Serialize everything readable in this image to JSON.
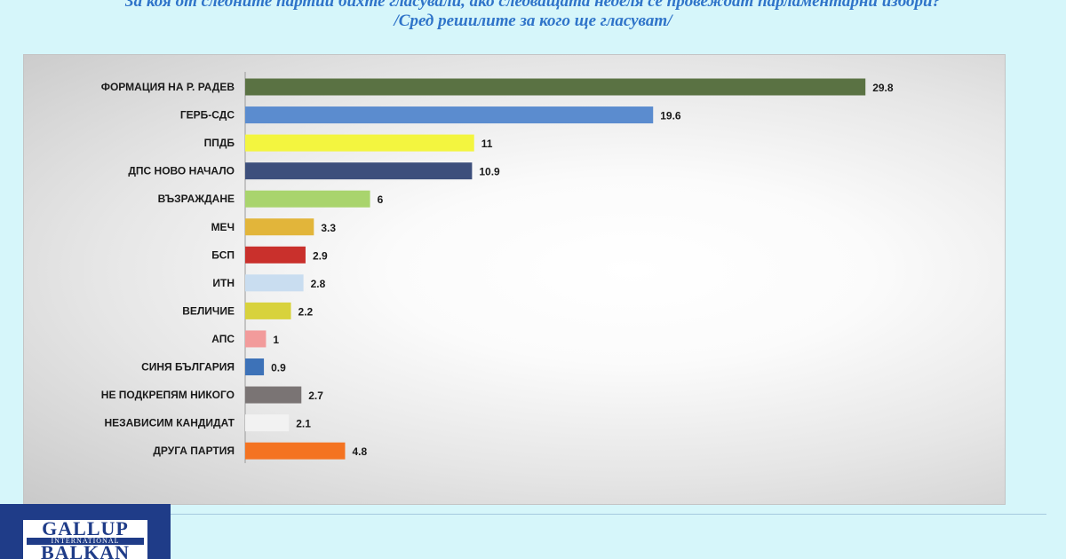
{
  "header": {
    "title_line1": "За коя от следните партии бихте гласували, ако следващата неделя се провеждат парламентарни избори?",
    "title_line2": "/Сред решилите за кого ще гласуват/"
  },
  "logo": {
    "line1": "GALLUP",
    "line2": "INTERNATIONAL",
    "line3": "BALKAN"
  },
  "chart_data": {
    "type": "bar",
    "orientation": "horizontal",
    "title": "За коя от следните партии бихте гласували, ако следващата неделя се провеждат парламентарни избори?",
    "subtitle": "/Сред решилите за кого ще гласуват/",
    "xlabel": "",
    "ylabel": "",
    "xlim": [
      0,
      32
    ],
    "grid": false,
    "categories": [
      "ФОРМАЦИЯ НА Р. РАДЕВ",
      "ГЕРБ-СДС",
      "ППДБ",
      "ДПС НОВО НАЧАЛО",
      "ВЪЗРАЖДАНЕ",
      "МЕЧ",
      "БСП",
      "ИТН",
      "ВЕЛИЧИЕ",
      "АПС",
      "СИНЯ БЪЛГАРИЯ",
      "НЕ ПОДКРЕПЯМ НИКОГО",
      "НЕЗАВИСИМ КАНДИДАТ",
      "ДРУГА ПАРТИЯ"
    ],
    "values": [
      29.8,
      19.6,
      11,
      10.9,
      6,
      3.3,
      2.9,
      2.8,
      2.2,
      1,
      0.9,
      2.7,
      2.1,
      4.8
    ],
    "value_labels": [
      "29.8",
      "19.6",
      "11",
      "10.9",
      "6",
      "3.3",
      "2.9",
      "2.8",
      "2.2",
      "1",
      "0.9",
      "2.7",
      "2.1",
      "4.8"
    ],
    "colors": [
      "#5a7243",
      "#5b8ccf",
      "#f3f53f",
      "#3d4f7c",
      "#a9d46d",
      "#e2b53a",
      "#c9302c",
      "#c9ddf0",
      "#d8d23c",
      "#f29b9b",
      "#3d72b8",
      "#7a7474",
      "#f2f2f2",
      "#f47321"
    ]
  }
}
